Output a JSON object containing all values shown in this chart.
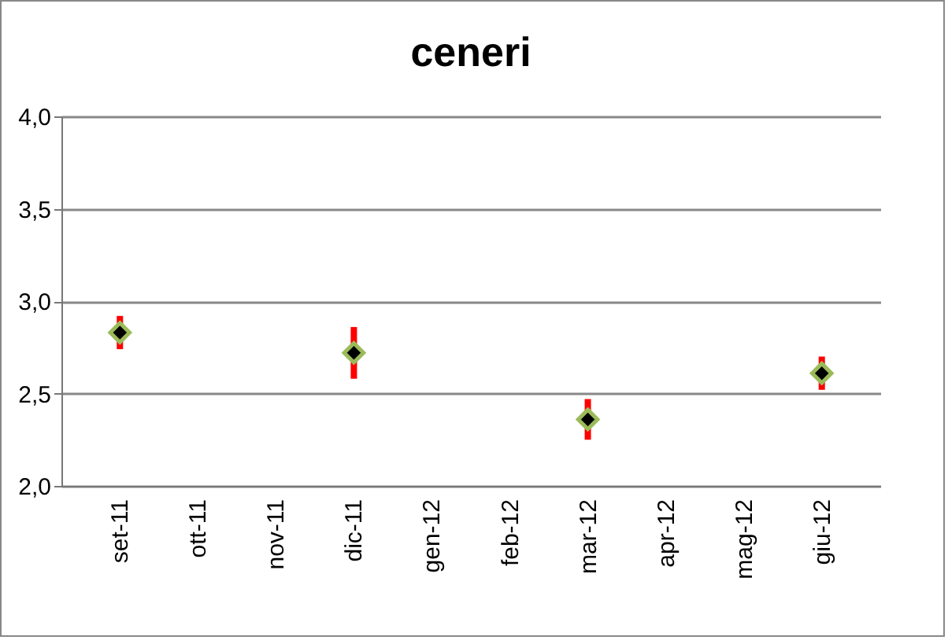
{
  "chart_data": {
    "type": "scatter",
    "title": "ceneri",
    "categories": [
      "set-11",
      "ott-11",
      "nov-11",
      "dic-11",
      "gen-12",
      "feb-12",
      "mar-12",
      "apr-12",
      "mag-12",
      "giu-12"
    ],
    "series": [
      {
        "color": "#000000",
        "values": [
          2.83,
          null,
          null,
          2.72,
          null,
          null,
          2.36,
          null,
          null,
          2.61
        ],
        "errors": [
          0.09,
          null,
          null,
          0.14,
          null,
          null,
          0.11,
          null,
          null,
          0.09
        ]
      }
    ],
    "ylim": [
      2.0,
      4.0
    ],
    "yticks": [
      {
        "value": 2.0,
        "label": "2,0"
      },
      {
        "value": 2.5,
        "label": "2,5"
      },
      {
        "value": 3.0,
        "label": "3,0"
      },
      {
        "value": 3.5,
        "label": "3,5"
      },
      {
        "value": 4.0,
        "label": "4,0"
      }
    ],
    "grid": "y",
    "marker": "diamond"
  }
}
